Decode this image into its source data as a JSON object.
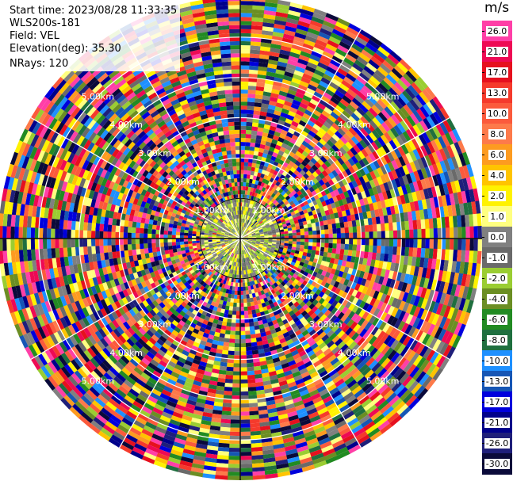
{
  "header": {
    "start_time": "Start time: 2023/08/28 11:33:35",
    "station": "WLS200s-181",
    "field": "Field: VEL",
    "elevation": "Elevation(deg): 35.30",
    "nrays": "NRays: 120"
  },
  "chart_data": {
    "type": "heatmap",
    "subtype": "radar-ppi",
    "colorbar_unit": "m/s",
    "colorbar_ticks": [
      "26.0",
      "21.0",
      "17.0",
      "13.0",
      "10.0",
      "8.0",
      "6.0",
      "4.0",
      "2.0",
      "1.0",
      "0.0",
      "-1.0",
      "-2.0",
      "-4.0",
      "-6.0",
      "-8.0",
      "-10.0",
      "-13.0",
      "-17.0",
      "-21.0",
      "-26.0",
      "-30.0"
    ],
    "colorbar_colors": [
      "#ff3fa7",
      "#ee0a54",
      "#e6101e",
      "#f53a2c",
      "#fb5a3c",
      "#fd7a4a",
      "#fd9b20",
      "#ffc400",
      "#fff200",
      "#ffff80",
      "#808080",
      "#6a6a6a",
      "#9acd32",
      "#6b8e23",
      "#228b22",
      "#1f6f3f",
      "#1e90ff",
      "#1656b5",
      "#0000dd",
      "#00008b",
      "#1f1f7a",
      "#0a0a3a"
    ],
    "range_rings": [
      {
        "range_km": 1.0,
        "label": "1.00km"
      },
      {
        "range_km": 2.0,
        "label": "2.00km"
      },
      {
        "range_km": 3.0,
        "label": "3.00km"
      },
      {
        "range_km": 4.0,
        "label": "4.00km"
      },
      {
        "range_km": 5.0,
        "label": "5.00km"
      }
    ],
    "max_range_km": 6.0,
    "n_rays": 120,
    "n_gates": 60
  }
}
